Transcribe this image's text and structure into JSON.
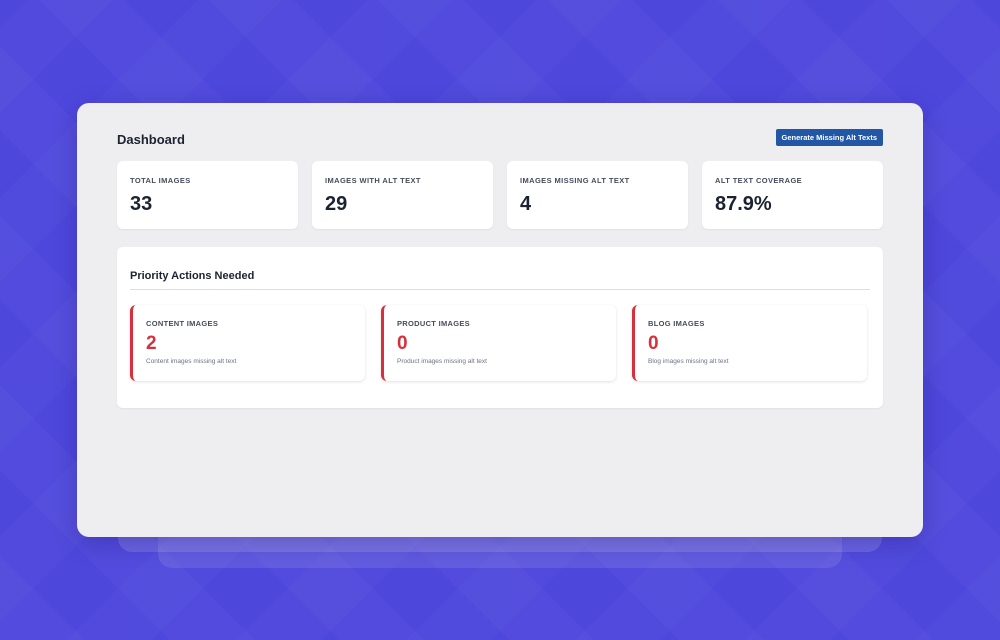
{
  "header": {
    "title": "Dashboard",
    "generate_button_label": "Generate Missing Alt Texts"
  },
  "stats": [
    {
      "label": "TOTAL IMAGES",
      "value": "33"
    },
    {
      "label": "IMAGES WITH ALT TEXT",
      "value": "29"
    },
    {
      "label": "IMAGES MISSING ALT TEXT",
      "value": "4"
    },
    {
      "label": "ALT TEXT COVERAGE",
      "value": "87.9%"
    }
  ],
  "priority": {
    "title": "Priority Actions Needed",
    "cards": [
      {
        "label": "CONTENT IMAGES",
        "value": "2",
        "description": "Content images missing alt text"
      },
      {
        "label": "PRODUCT IMAGES",
        "value": "0",
        "description": "Product images missing alt text"
      },
      {
        "label": "BLOG IMAGES",
        "value": "0",
        "description": "Blog images missing alt text"
      }
    ]
  },
  "colors": {
    "background": "#4e47dc",
    "panel": "#eeeef0",
    "button": "#2257a6",
    "alert": "#d7303c",
    "text": "#1b2230"
  }
}
